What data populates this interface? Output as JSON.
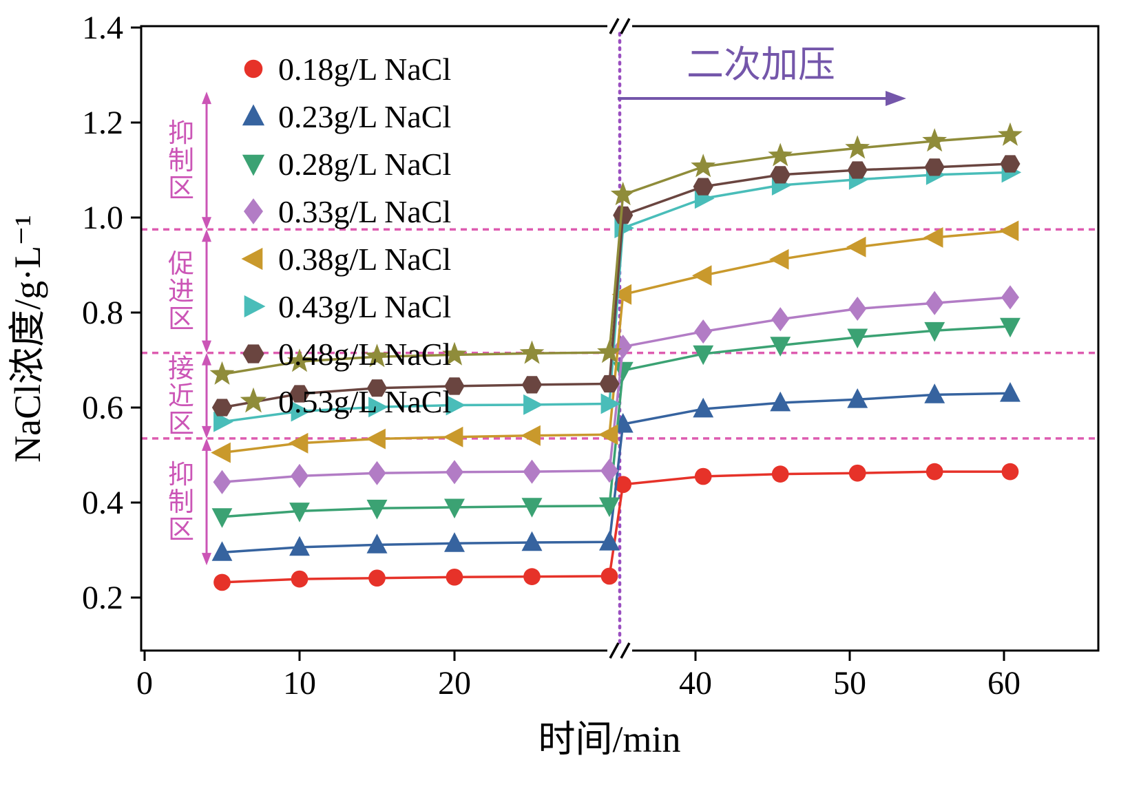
{
  "chart_data": {
    "type": "line",
    "title": "",
    "xlabel": "时间/min",
    "ylabel": "NaCl浓度/g·L⁻¹",
    "ylim": [
      0.088,
      1.403
    ],
    "xlim_note": "broken x axis: 0-31 min then 35-62 min",
    "axis_break_x": 31,
    "grid": false,
    "legend_position": "upper-left-inside",
    "yticks": [
      "0.2",
      "0.4",
      "0.6",
      "0.8",
      "1.0",
      "1.2",
      "1.4"
    ],
    "xticks": [
      {
        "value": 0,
        "label": "0"
      },
      {
        "value": 10,
        "label": "10"
      },
      {
        "value": 20,
        "label": "20"
      },
      {
        "value": 40,
        "label": "40"
      },
      {
        "value": 50,
        "label": "50"
      },
      {
        "value": 60,
        "label": "60"
      }
    ],
    "series": [
      {
        "name": "0.18g/L NaCl",
        "color": "#e63229",
        "marker": "circle",
        "x": [
          5,
          10,
          15,
          20,
          25,
          30,
          35.3,
          40.5,
          45.5,
          50.5,
          55.5,
          60.4
        ],
        "y": [
          0.232,
          0.239,
          0.241,
          0.243,
          0.244,
          0.245,
          0.438,
          0.455,
          0.46,
          0.462,
          0.465,
          0.465
        ]
      },
      {
        "name": "0.23g/L NaCl",
        "color": "#36639f",
        "marker": "triangle-up",
        "x": [
          5,
          10,
          15,
          20,
          25,
          30,
          35.3,
          40.5,
          45.5,
          50.5,
          55.5,
          60.4
        ],
        "y": [
          0.295,
          0.306,
          0.311,
          0.314,
          0.316,
          0.317,
          0.565,
          0.597,
          0.61,
          0.617,
          0.627,
          0.63
        ]
      },
      {
        "name": "0.28g/L NaCl",
        "color": "#3ba273",
        "marker": "triangle-down",
        "x": [
          5,
          10,
          15,
          20,
          25,
          30,
          35.3,
          40.5,
          45.5,
          50.5,
          55.5,
          60.4
        ],
        "y": [
          0.37,
          0.382,
          0.388,
          0.39,
          0.392,
          0.393,
          0.678,
          0.713,
          0.731,
          0.748,
          0.762,
          0.771
        ]
      },
      {
        "name": "0.33g/L NaCl",
        "color": "#b27cc5",
        "marker": "diamond",
        "x": [
          5,
          10,
          15,
          20,
          25,
          30,
          35.3,
          40.5,
          45.5,
          50.5,
          55.5,
          60.4
        ],
        "y": [
          0.443,
          0.456,
          0.462,
          0.464,
          0.465,
          0.467,
          0.728,
          0.76,
          0.786,
          0.808,
          0.82,
          0.832
        ]
      },
      {
        "name": "0.38g/L NaCl",
        "color": "#c9992c",
        "marker": "triangle-left",
        "x": [
          5,
          10,
          15,
          20,
          25,
          30,
          35.3,
          40.5,
          45.5,
          50.5,
          55.5,
          60.4
        ],
        "y": [
          0.505,
          0.525,
          0.534,
          0.538,
          0.541,
          0.543,
          0.838,
          0.878,
          0.912,
          0.938,
          0.958,
          0.972
        ]
      },
      {
        "name": "0.43g/L NaCl",
        "color": "#49bdb9",
        "marker": "triangle-right",
        "x": [
          5,
          10,
          15,
          20,
          25,
          30,
          35.3,
          40.5,
          45.5,
          50.5,
          55.5,
          60.4
        ],
        "y": [
          0.57,
          0.592,
          0.601,
          0.605,
          0.606,
          0.608,
          0.978,
          1.04,
          1.068,
          1.08,
          1.09,
          1.095
        ]
      },
      {
        "name": "0.48g/L NaCl",
        "color": "#6a4540",
        "marker": "hexagon",
        "x": [
          5,
          10,
          15,
          20,
          25,
          30,
          35.3,
          40.5,
          45.5,
          50.5,
          55.5,
          60.4
        ],
        "y": [
          0.6,
          0.629,
          0.641,
          0.645,
          0.648,
          0.65,
          1.005,
          1.065,
          1.09,
          1.1,
          1.106,
          1.113
        ]
      },
      {
        "name": "0.53g/L NaCl",
        "color": "#8f8c3a",
        "marker": "star",
        "x": [
          5,
          10,
          15,
          20,
          25,
          30,
          35.3,
          40.5,
          45.5,
          50.5,
          55.5,
          60.4
        ],
        "y": [
          0.67,
          0.697,
          0.707,
          0.711,
          0.714,
          0.716,
          1.048,
          1.107,
          1.13,
          1.146,
          1.161,
          1.173
        ]
      }
    ],
    "threshold_lines": {
      "color": "#dd5cb0",
      "values": [
        0.975,
        0.715,
        0.535
      ]
    },
    "break_line_color": "#9a4fc0",
    "zones": {
      "color": "#cb55b6",
      "items": [
        {
          "label": "抑制区",
          "y_top": 1.265,
          "y_bottom": 0.975
        },
        {
          "label": "促进区",
          "y_top": 0.975,
          "y_bottom": 0.715
        },
        {
          "label": "接近区",
          "y_top": 0.715,
          "y_bottom": 0.535
        },
        {
          "label": "抑制区",
          "y_top": 0.535,
          "y_bottom": 0.268
        }
      ]
    },
    "pressure_annotation": {
      "text": "二次加压",
      "color": "#7456aa"
    }
  }
}
